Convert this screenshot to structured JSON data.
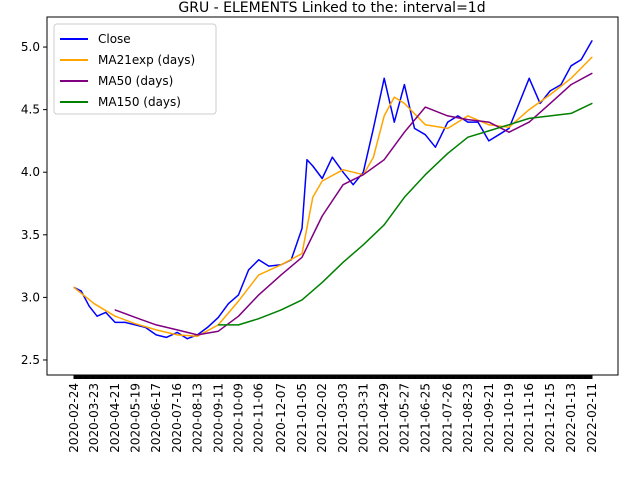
{
  "chart_data": {
    "type": "line",
    "title": "GRU - ELEMENTS Linked to the: interval=1d",
    "xlabel": "",
    "ylabel": "",
    "ylim": [
      2.38,
      5.24
    ],
    "yticks": [
      2.5,
      3.0,
      3.5,
      4.0,
      4.5,
      5.0
    ],
    "ytick_labels": [
      "2.5",
      "3.0",
      "3.5",
      "4.0",
      "4.5",
      "5.0"
    ],
    "x_range": [
      "2020-02-24",
      "2022-02-11"
    ],
    "xticks": [
      "2020-02-24",
      "2020-03-23",
      "2020-04-21",
      "2020-05-19",
      "2020-06-17",
      "2020-07-16",
      "2020-08-13",
      "2020-09-11",
      "2020-10-09",
      "2020-11-06",
      "2020-12-07",
      "2021-01-05",
      "2021-02-02",
      "2021-03-03",
      "2021-03-31",
      "2021-04-29",
      "2021-05-27",
      "2021-06-25",
      "2021-07-26",
      "2021-08-23",
      "2021-09-21",
      "2021-10-19",
      "2021-11-16",
      "2021-12-15",
      "2022-01-13",
      "2022-02-11"
    ],
    "grid": false,
    "legend_position": "upper left",
    "series": [
      {
        "name": "Close",
        "color": "#0000ff",
        "points": [
          [
            "2020-02-24",
            3.08
          ],
          [
            "2020-03-05",
            3.05
          ],
          [
            "2020-03-16",
            2.93
          ],
          [
            "2020-03-27",
            2.85
          ],
          [
            "2020-04-08",
            2.88
          ],
          [
            "2020-04-21",
            2.8
          ],
          [
            "2020-05-05",
            2.8
          ],
          [
            "2020-05-19",
            2.78
          ],
          [
            "2020-06-02",
            2.76
          ],
          [
            "2020-06-17",
            2.7
          ],
          [
            "2020-07-01",
            2.68
          ],
          [
            "2020-07-16",
            2.72
          ],
          [
            "2020-07-30",
            2.67
          ],
          [
            "2020-08-13",
            2.7
          ],
          [
            "2020-08-27",
            2.76
          ],
          [
            "2020-09-11",
            2.84
          ],
          [
            "2020-09-25",
            2.95
          ],
          [
            "2020-10-09",
            3.02
          ],
          [
            "2020-10-23",
            3.22
          ],
          [
            "2020-11-06",
            3.3
          ],
          [
            "2020-11-20",
            3.25
          ],
          [
            "2020-12-07",
            3.26
          ],
          [
            "2020-12-21",
            3.3
          ],
          [
            "2021-01-05",
            3.55
          ],
          [
            "2021-01-12",
            4.1
          ],
          [
            "2021-01-20",
            4.05
          ],
          [
            "2021-02-02",
            3.95
          ],
          [
            "2021-02-16",
            4.12
          ],
          [
            "2021-03-03",
            4.0
          ],
          [
            "2021-03-17",
            3.9
          ],
          [
            "2021-03-31",
            4.0
          ],
          [
            "2021-04-14",
            4.35
          ],
          [
            "2021-04-29",
            4.75
          ],
          [
            "2021-05-13",
            4.4
          ],
          [
            "2021-05-27",
            4.7
          ],
          [
            "2021-06-10",
            4.35
          ],
          [
            "2021-06-25",
            4.3
          ],
          [
            "2021-07-09",
            4.2
          ],
          [
            "2021-07-26",
            4.4
          ],
          [
            "2021-08-09",
            4.45
          ],
          [
            "2021-08-23",
            4.4
          ],
          [
            "2021-09-06",
            4.4
          ],
          [
            "2021-09-21",
            4.25
          ],
          [
            "2021-10-05",
            4.3
          ],
          [
            "2021-10-19",
            4.35
          ],
          [
            "2021-11-02",
            4.55
          ],
          [
            "2021-11-16",
            4.75
          ],
          [
            "2021-12-01",
            4.55
          ],
          [
            "2021-12-15",
            4.65
          ],
          [
            "2021-12-30",
            4.7
          ],
          [
            "2022-01-13",
            4.85
          ],
          [
            "2022-01-27",
            4.9
          ],
          [
            "2022-02-11",
            5.05
          ]
        ]
      },
      {
        "name": "MA21exp (days)",
        "color": "#ffa500",
        "points": [
          [
            "2020-02-24",
            3.08
          ],
          [
            "2020-03-23",
            2.95
          ],
          [
            "2020-04-21",
            2.85
          ],
          [
            "2020-05-19",
            2.79
          ],
          [
            "2020-06-17",
            2.74
          ],
          [
            "2020-07-16",
            2.7
          ],
          [
            "2020-08-13",
            2.69
          ],
          [
            "2020-09-11",
            2.78
          ],
          [
            "2020-10-09",
            2.97
          ],
          [
            "2020-11-06",
            3.18
          ],
          [
            "2020-12-07",
            3.26
          ],
          [
            "2021-01-05",
            3.35
          ],
          [
            "2021-01-20",
            3.8
          ],
          [
            "2021-02-02",
            3.93
          ],
          [
            "2021-03-03",
            4.02
          ],
          [
            "2021-03-31",
            3.98
          ],
          [
            "2021-04-14",
            4.12
          ],
          [
            "2021-04-29",
            4.45
          ],
          [
            "2021-05-13",
            4.6
          ],
          [
            "2021-05-27",
            4.55
          ],
          [
            "2021-06-25",
            4.38
          ],
          [
            "2021-07-26",
            4.35
          ],
          [
            "2021-08-23",
            4.45
          ],
          [
            "2021-09-21",
            4.38
          ],
          [
            "2021-10-19",
            4.36
          ],
          [
            "2021-11-16",
            4.5
          ],
          [
            "2021-12-15",
            4.62
          ],
          [
            "2022-01-13",
            4.75
          ],
          [
            "2022-02-11",
            4.92
          ]
        ]
      },
      {
        "name": "MA50 (days)",
        "color": "#800080",
        "points": [
          [
            "2020-04-21",
            2.9
          ],
          [
            "2020-05-19",
            2.84
          ],
          [
            "2020-06-17",
            2.78
          ],
          [
            "2020-07-16",
            2.74
          ],
          [
            "2020-08-13",
            2.7
          ],
          [
            "2020-09-11",
            2.73
          ],
          [
            "2020-10-09",
            2.85
          ],
          [
            "2020-11-06",
            3.02
          ],
          [
            "2020-12-07",
            3.18
          ],
          [
            "2021-01-05",
            3.32
          ],
          [
            "2021-02-02",
            3.65
          ],
          [
            "2021-03-03",
            3.9
          ],
          [
            "2021-03-31",
            3.98
          ],
          [
            "2021-04-29",
            4.1
          ],
          [
            "2021-05-27",
            4.32
          ],
          [
            "2021-06-25",
            4.52
          ],
          [
            "2021-07-26",
            4.45
          ],
          [
            "2021-08-23",
            4.42
          ],
          [
            "2021-09-21",
            4.4
          ],
          [
            "2021-10-19",
            4.32
          ],
          [
            "2021-11-16",
            4.4
          ],
          [
            "2021-12-15",
            4.55
          ],
          [
            "2022-01-13",
            4.7
          ],
          [
            "2022-02-11",
            4.79
          ]
        ]
      },
      {
        "name": "MA150 (days)",
        "color": "#008000",
        "points": [
          [
            "2020-09-11",
            2.78
          ],
          [
            "2020-10-09",
            2.78
          ],
          [
            "2020-11-06",
            2.83
          ],
          [
            "2020-12-07",
            2.9
          ],
          [
            "2021-01-05",
            2.98
          ],
          [
            "2021-02-02",
            3.12
          ],
          [
            "2021-03-03",
            3.28
          ],
          [
            "2021-03-31",
            3.42
          ],
          [
            "2021-04-29",
            3.58
          ],
          [
            "2021-05-27",
            3.8
          ],
          [
            "2021-06-25",
            3.98
          ],
          [
            "2021-07-26",
            4.15
          ],
          [
            "2021-08-23",
            4.28
          ],
          [
            "2021-09-21",
            4.33
          ],
          [
            "2021-10-19",
            4.38
          ],
          [
            "2021-11-16",
            4.43
          ],
          [
            "2021-12-15",
            4.45
          ],
          [
            "2022-01-13",
            4.47
          ],
          [
            "2022-02-11",
            4.55
          ]
        ]
      }
    ]
  }
}
